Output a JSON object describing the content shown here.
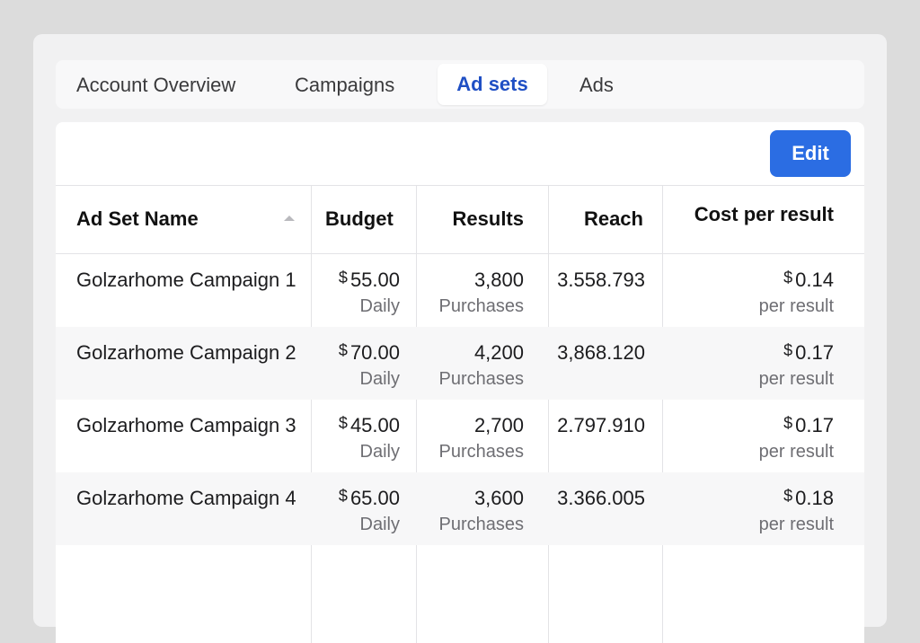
{
  "tabs": [
    {
      "label": "Account Overview",
      "active": false
    },
    {
      "label": "Campaigns",
      "active": false
    },
    {
      "label": "Ad sets",
      "active": true
    },
    {
      "label": "Ads",
      "active": false
    }
  ],
  "toolbar": {
    "edit_label": "Edit"
  },
  "colors": {
    "accent": "#2b6de3",
    "active_tab": "#1f4fc4"
  },
  "table": {
    "columns": {
      "name": "Ad Set Name",
      "budget": "Budget",
      "results": "Results",
      "reach": "Reach",
      "cost": "Cost per result"
    },
    "rows": [
      {
        "name": "Golzarhome Campaign 1",
        "budget_currency": "$",
        "budget": "55.00",
        "budget_period": "Daily",
        "results": "3,800",
        "results_type": "Purchases",
        "reach": "3.558.793",
        "cost_currency": "$",
        "cost": "0.14",
        "cost_unit": "per result"
      },
      {
        "name": "Golzarhome Campaign 2",
        "budget_currency": "$",
        "budget": "70.00",
        "budget_period": "Daily",
        "results": "4,200",
        "results_type": "Purchases",
        "reach": "3,868.120",
        "cost_currency": "$",
        "cost": "0.17",
        "cost_unit": "per result"
      },
      {
        "name": "Golzarhome Campaign 3",
        "budget_currency": "$",
        "budget": "45.00",
        "budget_period": "Daily",
        "results": "2,700",
        "results_type": "Purchases",
        "reach": "2.797.910",
        "cost_currency": "$",
        "cost": "0.17",
        "cost_unit": "per result"
      },
      {
        "name": "Golzarhome Campaign 4",
        "budget_currency": "$",
        "budget": "65.00",
        "budget_period": "Daily",
        "results": "3,600",
        "results_type": "Purchases",
        "reach": "3.366.005",
        "cost_currency": "$",
        "cost": "0.18",
        "cost_unit": "per result"
      }
    ]
  }
}
